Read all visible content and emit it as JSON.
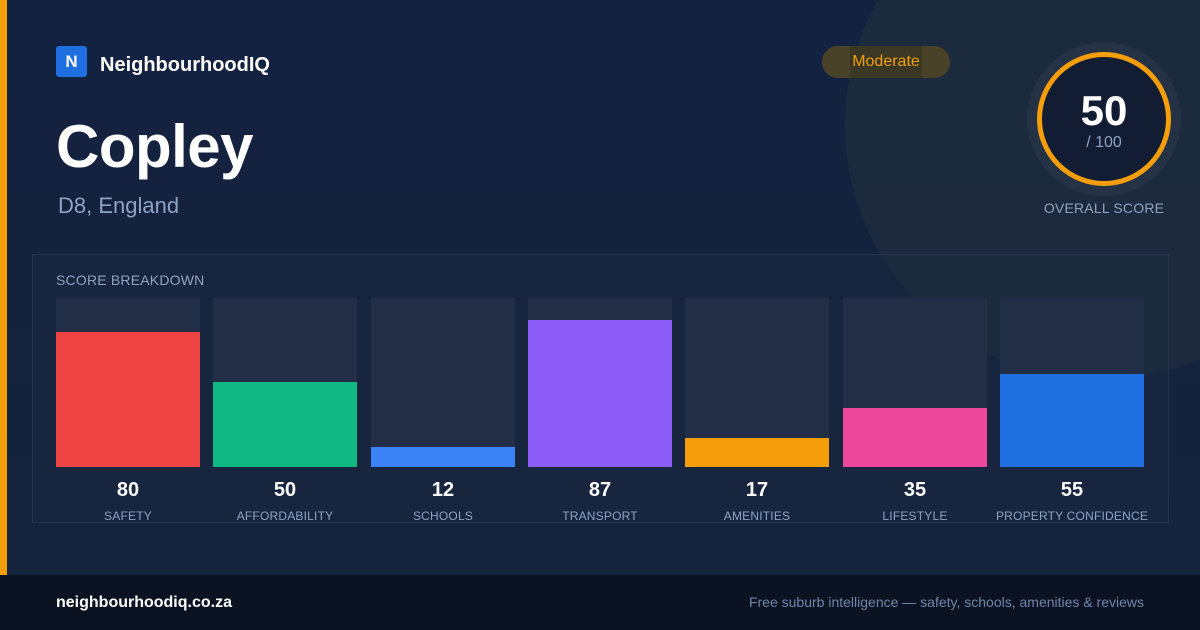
{
  "brand": {
    "logo_letter": "N",
    "name": "NeighbourhoodIQ"
  },
  "suburb": {
    "name": "Copley",
    "location": "D8, England"
  },
  "rating_badge": "Moderate",
  "overall": {
    "score": "50",
    "out_of": "/ 100",
    "label": "OVERALL SCORE"
  },
  "breakdown": {
    "title": "SCORE BREAKDOWN"
  },
  "chart_data": {
    "type": "bar",
    "title": "SCORE BREAKDOWN",
    "categories": [
      "SAFETY",
      "AFFORDABILITY",
      "SCHOOLS",
      "TRANSPORT",
      "AMENITIES",
      "LIFESTYLE",
      "PROPERTY CONFIDENCE"
    ],
    "values": [
      80,
      50,
      12,
      87,
      17,
      35,
      55
    ],
    "colors": [
      "#ef4444",
      "#10b981",
      "#3b82f6",
      "#8b5cf6",
      "#f59e0b",
      "#ec4899",
      "#1f6fe0"
    ],
    "ylim": [
      0,
      100
    ],
    "grid": false,
    "legend": "none"
  },
  "footer": {
    "url": "neighbourhoodiq.co.za",
    "tagline": "Free suburb intelligence — safety, schools, amenities & reviews"
  },
  "colors": {
    "accent": "#f59e0b",
    "background": "#132240",
    "footer": "#0b1323"
  }
}
